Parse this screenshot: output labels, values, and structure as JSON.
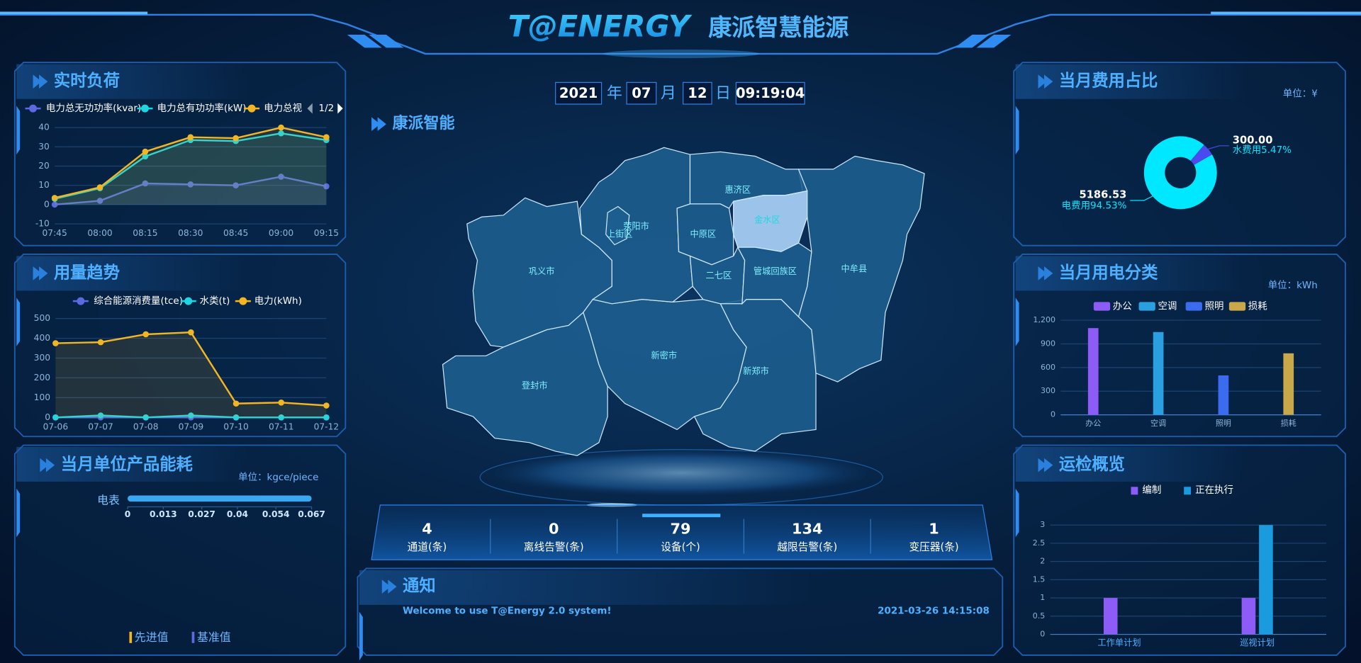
{
  "header": {
    "brand": "T@ENERGY",
    "title": "康派智慧能源"
  },
  "datetime": {
    "year": "2021",
    "year_unit": "年",
    "month": "07",
    "month_unit": "月",
    "day": "12",
    "day_unit": "日",
    "time": "09:19:04"
  },
  "map": {
    "title": "康派智能",
    "regions": [
      {
        "name": "巩义市",
        "highlighted": false
      },
      {
        "name": "登封市",
        "highlighted": false
      },
      {
        "name": "新密市",
        "highlighted": false
      },
      {
        "name": "新郑市",
        "highlighted": false
      },
      {
        "name": "中牟县",
        "highlighted": false
      },
      {
        "name": "荥阳市",
        "highlighted": false
      },
      {
        "name": "上街区",
        "highlighted": false
      },
      {
        "name": "中原区",
        "highlighted": false
      },
      {
        "name": "惠济区",
        "highlighted": false
      },
      {
        "name": "金水区",
        "highlighted": true
      },
      {
        "name": "二七区",
        "highlighted": false
      },
      {
        "name": "管城回族区",
        "highlighted": false
      }
    ]
  },
  "stats": [
    {
      "value": 4,
      "label": "通道(条)"
    },
    {
      "value": 0,
      "label": "离线告警(条)"
    },
    {
      "value": 79,
      "label": "设备(个)"
    },
    {
      "value": 134,
      "label": "越限告警(条)"
    },
    {
      "value": 1,
      "label": "变压器(条)"
    }
  ],
  "notice": {
    "title": "通知",
    "message": "Welcome to use T@Energy 2.0 system!",
    "time": "2021-03-26 14:15:08"
  },
  "chart_data": [
    {
      "type": "line",
      "title": "实时负荷",
      "categories": [
        "07:45",
        "08:00",
        "08:15",
        "08:30",
        "08:45",
        "09:00",
        "09:15"
      ],
      "series": [
        {
          "name": "电力总无功功率(kvar)",
          "color": "#5b6bdf",
          "values": [
            0,
            2,
            11,
            10.5,
            10,
            14.5,
            9.5
          ]
        },
        {
          "name": "电力总有功功率(kW)",
          "color": "#1fd6e0",
          "values": [
            3,
            8.5,
            25,
            33.5,
            33,
            37,
            33.5
          ]
        },
        {
          "name": "电力总视",
          "color": "#f2b625",
          "values": [
            3.5,
            9,
            27.5,
            35,
            34.5,
            40,
            35
          ]
        }
      ],
      "legend_page": "1/2",
      "ylim": [
        -10,
        40
      ],
      "yticks": [
        -10,
        0,
        10,
        20,
        30,
        40
      ],
      "grid": true
    },
    {
      "type": "line",
      "title": "用量趋势",
      "categories": [
        "07-06",
        "07-07",
        "07-08",
        "07-09",
        "07-10",
        "07-11",
        "07-12"
      ],
      "series": [
        {
          "name": "综合能源消费量(tce)",
          "color": "#5b6bdf",
          "values": [
            0,
            0,
            0,
            0,
            0,
            0,
            0
          ]
        },
        {
          "name": "水类(t)",
          "color": "#1fd6e0",
          "values": [
            0,
            10,
            0,
            10,
            0,
            0,
            0
          ]
        },
        {
          "name": "电力(kWh)",
          "color": "#f2b625",
          "values": [
            375,
            380,
            420,
            430,
            70,
            75,
            60
          ]
        }
      ],
      "ylim": [
        0,
        500
      ],
      "yticks": [
        0,
        100,
        200,
        300,
        400,
        500
      ],
      "grid": true
    },
    {
      "type": "hbar",
      "title": "当月单位产品能耗",
      "unit": "单位：kgce/piece",
      "categories": [
        "电表"
      ],
      "values": [
        0.067
      ],
      "color": "#3aa8f0",
      "xlim": [
        0,
        0.067
      ],
      "xticks": [
        0,
        0.013,
        0.027,
        0.04,
        0.054,
        0.067
      ],
      "legend": [
        {
          "name": "先进值",
          "color": "#f2b625"
        },
        {
          "name": "基准值",
          "color": "#5b6bdf"
        }
      ]
    },
    {
      "type": "pie",
      "title": "当月费用占比",
      "unit": "单位：¥",
      "values": [
        5186.53,
        300
      ],
      "value_labels": [
        "5186.53",
        "300.00"
      ],
      "labels": [
        "电费用94.53%",
        "水费用5.47%"
      ],
      "colors": [
        "#00e8ff",
        "#4a4af0"
      ],
      "donut": true
    },
    {
      "type": "bar",
      "title": "当月用电分类",
      "unit": "单位：kWh",
      "categories": [
        "办公",
        "空调",
        "照明",
        "损耗"
      ],
      "values": [
        1100,
        1050,
        500,
        780
      ],
      "colors": [
        "#8d5cf6",
        "#2aa0e0",
        "#3b6cf0",
        "#c9a84a"
      ],
      "ylim": [
        0,
        1200
      ],
      "yticks": [
        0,
        300,
        600,
        900,
        {
          "value": 1200,
          "label": "1,200"
        }
      ],
      "grid": true
    },
    {
      "type": "grouped-bar",
      "title": "运检概览",
      "categories": [
        "工作单计划",
        "巡视计划"
      ],
      "series": [
        {
          "name": "编制",
          "color": "#8d5cf6",
          "values": [
            1,
            1
          ]
        },
        {
          "name": "正在执行",
          "color": "#1a9be0",
          "values": [
            0,
            3
          ]
        }
      ],
      "ylim": [
        0,
        3
      ],
      "yticks": [
        0,
        0.5,
        1,
        1.5,
        2,
        2.5,
        3
      ],
      "grid": true
    }
  ]
}
